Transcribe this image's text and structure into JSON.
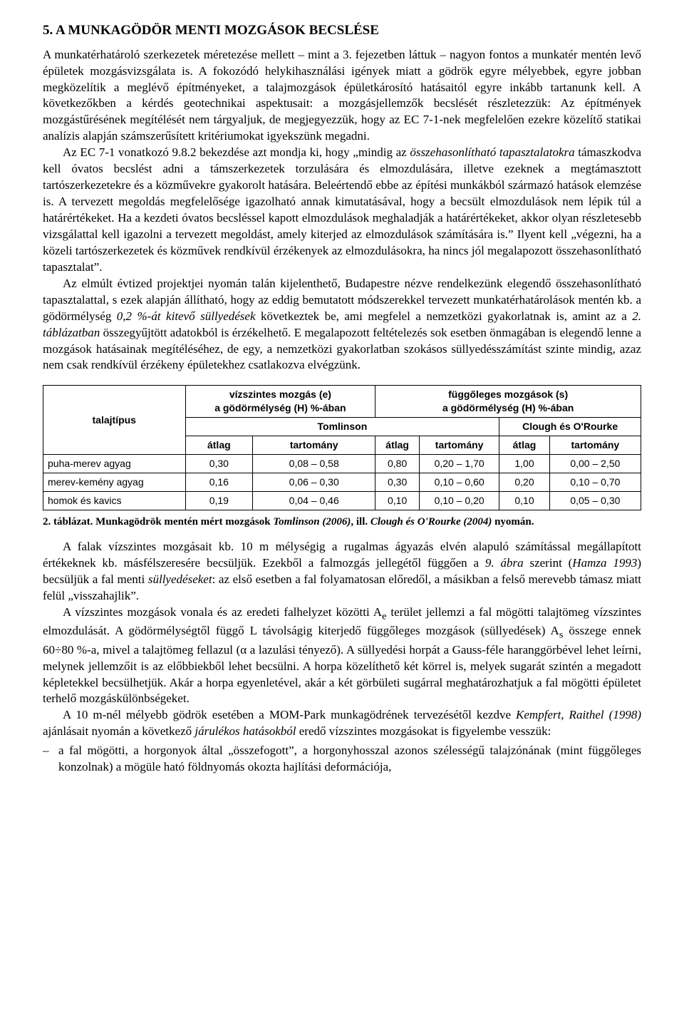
{
  "heading": "5. A MUNKAGÖDÖR MENTI MOZGÁSOK BECSLÉSE",
  "para1_a": "A munkatérhatároló szerkezetek méretezése mellett – mint a 3. fejezetben láttuk – nagyon fontos a munkatér mentén levő épületek mozgásvizsgálata is. A fokozódó helykihasználási igények miatt a gödrök egyre mélyebbek, egyre jobban megközelítik a meglévő építményeket, a talajmozgások épületkárosító hatásaitól egyre inkább tartanunk kell. A következőkben a kérdés geotechnikai aspektusait: a mozgásjellemzők becslését részletezzük: Az építmények mozgástűrésének megítélését nem tárgyaljuk, de megjegyezzük, hogy az EC 7-1-nek megfelelően ezekre közelítő statikai analízis alapján számszerűsített kritériumokat igyekszünk megadni.",
  "para2_a": "Az EC 7-1 vonatkozó 9.8.2 bekezdése azt mondja ki, hogy „mindig az ",
  "para2_i1": "összehasonlítható tapasztalatokra",
  "para2_b": " támaszkodva kell óvatos becslést adni a támszerkezetek torzulására és elmozdulására, illetve ezeknek a megtámasztott tartószerkezetekre és a közművekre gyakorolt hatására. Beleértendő ebbe az építési munkákból származó hatások elemzése is. A tervezett megoldás megfelelősége igazolható annak kimutatásával, hogy a becsült elmozdulások nem lépik túl a határértékeket. Ha a kezdeti óvatos becsléssel kapott elmozdulások meghaladják a határértékeket, akkor olyan részletesebb vizsgálattal kell igazolni a tervezett megoldást, amely kiterjed az elmozdulások számítására is.” Ilyent kell „végezni, ha a közeli tartószerkezetek és közművek rendkívül érzékenyek az elmozdulásokra, ha nincs jól megalapozott összehasonlítható tapasztalat”.",
  "para3_a": "Az elmúlt évtized projektjei nyomán talán kijelenthető, Budapestre nézve rendelkezünk elegendő összehasonlítható tapasztalattal, s ezek alapján állítható, hogy az eddig bemutatott módszerekkel tervezett munkatérhatárolások mentén kb. a gödörmélység ",
  "para3_i1": "0,2 %-át kitevő süllyedések",
  "para3_b": " következtek be, ami megfelel a nemzetközi gyakorlatnak is, amint az a ",
  "para3_i2": "2. táblázatban",
  "para3_c": " összegyűjtött adatokból is érzékelhető. E megalapozott feltételezés sok esetben önmagában is elegendő lenne a mozgások hatásainak megítéléséhez, de egy, a nemzetközi gyakorlatban szokásos süllyedésszámítást szinte mindig, azaz nem csak rendkívül érzékeny épületekhez csatlakozva elvégzünk.",
  "table": {
    "row_header_label": "talajtípus",
    "group_h_label": "vízszintes mozgás (e)\na gödörmélység (H) %-ában",
    "group_v_label": "függőleges mozgások (s)\na gödörmélység (H) %-ában",
    "source1": "Tomlinson",
    "source2": "Clough és O'Rourke",
    "col_avg": "átlag",
    "col_range": "tartomány",
    "rows": [
      {
        "label": "puha-merev agyag",
        "c": [
          "0,30",
          "0,08 – 0,58",
          "0,80",
          "0,20 – 1,70",
          "1,00",
          "0,00 – 2,50"
        ]
      },
      {
        "label": "merev-kemény agyag",
        "c": [
          "0,16",
          "0,06 – 0,30",
          "0,30",
          "0,10 – 0,60",
          "0,20",
          "0,10 – 0,70"
        ]
      },
      {
        "label": "homok és kavics",
        "c": [
          "0,19",
          "0,04 – 0,46",
          "0,10",
          "0,10 – 0,20",
          "0,10",
          "0,05 – 0,30"
        ]
      }
    ]
  },
  "caption": {
    "a": "2. táblázat. Munkagödrök mentén mért mozgások ",
    "b": "Tomlinson (2006)",
    "c": ", ill. ",
    "d": "Clough és O'Rourke (2004)",
    "e": " nyomán."
  },
  "para4_a": "A falak vízszintes mozgásait kb. 10 m mélységig a rugalmas ágyazás elvén alapuló számítással megállapított értékeknek kb. másfélszeresére becsüljük. Ezekből a falmozgás jellegétől függően a ",
  "para4_i1": "9. ábra",
  "para4_b": " szerint (",
  "para4_i2": "Hamza 1993",
  "para4_c": ") becsüljük a fal menti ",
  "para4_i3": "süllyedéseket",
  "para4_d": ": az első esetben a fal folyamatosan előredől, a másikban a felső merevebb támasz miatt felül „visszahajlik”.",
  "para5_a": "A vízszintes mozgások vonala és az eredeti falhelyzet közötti A",
  "para5_sub1": "e",
  "para5_b": " terület jellemzi a fal mögötti talajtömeg vízszintes elmozdulását. A gödörmélységtől függő L távolságig kiterjedő függőleges mozgások (süllyedések) A",
  "para5_sub2": "s",
  "para5_c": " összege ennek 60÷80 %-a, mivel a talajtömeg fellazul (α a lazulási tényező). A süllyedési horpát a Gauss-féle haranggörbével lehet leírni, melynek jellemzőit is az előbbiekből lehet becsülni. A horpa közelíthető két körrel is, melyek sugarát szintén a megadott képletekkel becsülhetjük. Akár a horpa egyenletével, akár a két görbületi sugárral meghatározhatjuk a fal mögötti épületet terhelő mozgáskülönbségeket.",
  "para6_a": "A 10 m-nél mélyebb gödrök esetében a MOM-Park munkagödrének tervezésétől kezdve ",
  "para6_i1": "Kempfert, Raithel (1998)",
  "para6_b": " ajánlásait nyomán a következő ",
  "para6_i2": "járulékos hatásokból",
  "para6_c": " eredő vízszintes mozgásokat is figyelembe vesszük:",
  "list1": "a fal mögötti, a horgonyok által „összefogott”, a horgonyhosszal azonos szélességű talajzónának (mint függőleges konzolnak) a mögüle ható földnyomás okozta hajlítási deformációja,"
}
